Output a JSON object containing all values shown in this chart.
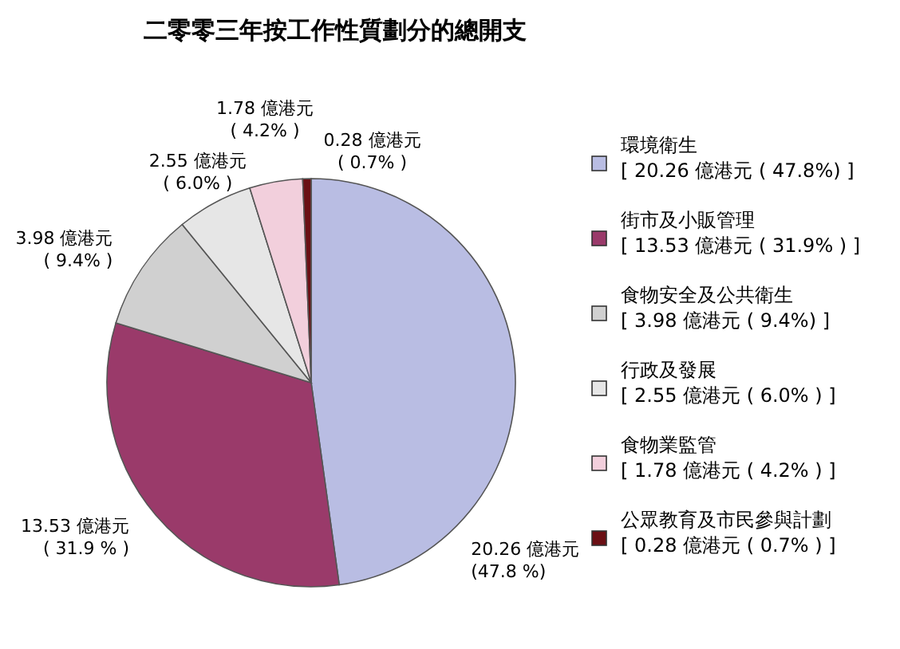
{
  "chart_data": {
    "type": "pie",
    "title": "二零零三年按工作性質劃分的總開支",
    "categories": [
      "環境衛生\n[ 20.26 億港元 ( 47.8%) ]",
      "街市及小販管理\n[ 13.53 億港元 ( 31.9% ) ]",
      "食物安全及公共衛生\n[ 3.98 億港元 ( 9.4%) ]",
      "行政及發展\n[ 2.55 億港元 ( 6.0% ) ]",
      "食物業監管\n[ 1.78 億港元 ( 4.2% ) ]",
      "公眾教育及市民參與計劃\n[ 0.28 億港元 ( 0.7% ) ]"
    ],
    "values": [
      20.26,
      13.53,
      3.98,
      2.55,
      1.78,
      0.28
    ],
    "value_labels": [
      "20.26 億港元\n(47.8 %)",
      "13.53 億港元\n( 31.9 % )",
      "3.98 億港元\n( 9.4% )",
      "2.55 億港元\n( 6.0% )",
      "1.78 億港元\n( 4.2% )",
      "0.28 億港元\n( 0.7% )"
    ],
    "colors": [
      "#b9bde3",
      "#9a3a6a",
      "#d0d0d0",
      "#e6e6e6",
      "#f2cfdc",
      "#6b0f14"
    ],
    "legend": "right"
  }
}
